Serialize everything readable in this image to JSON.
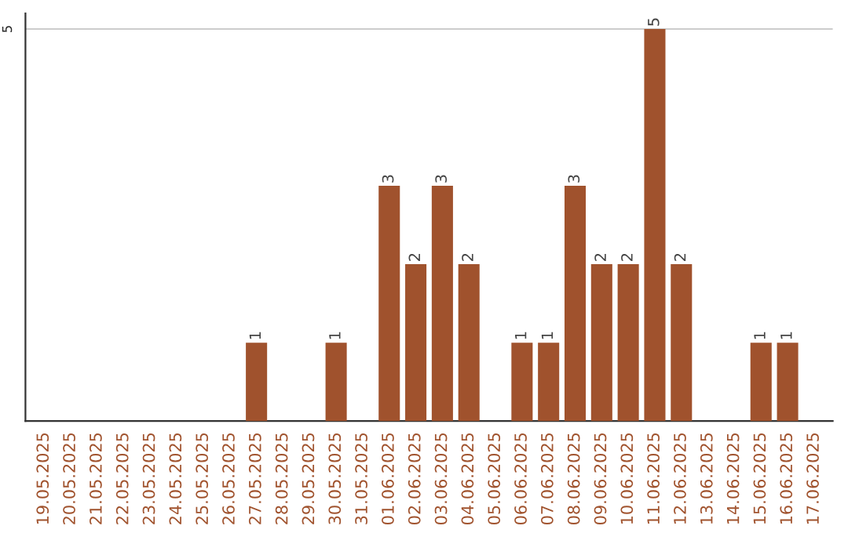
{
  "chart_data": {
    "type": "bar",
    "categories": [
      "19.05.2025",
      "20.05.2025",
      "21.05.2025",
      "22.05.2025",
      "23.05.2025",
      "24.05.2025",
      "25.05.2025",
      "26.05.2025",
      "27.05.2025",
      "28.05.2025",
      "29.05.2025",
      "30.05.2025",
      "31.05.2025",
      "01.06.2025",
      "02.06.2025",
      "03.06.2025",
      "04.06.2025",
      "05.06.2025",
      "06.06.2025",
      "07.06.2025",
      "08.06.2025",
      "09.06.2025",
      "10.06.2025",
      "11.06.2025",
      "12.06.2025",
      "13.06.2025",
      "14.06.2025",
      "15.06.2025",
      "16.06.2025",
      "17.06.2025"
    ],
    "values": [
      0,
      0,
      0,
      0,
      0,
      0,
      0,
      0,
      1,
      0,
      0,
      1,
      0,
      3,
      2,
      3,
      2,
      0,
      1,
      1,
      3,
      2,
      2,
      5,
      2,
      0,
      0,
      1,
      1,
      0
    ],
    "value_labels": [
      null,
      null,
      null,
      null,
      null,
      null,
      null,
      null,
      "1",
      null,
      null,
      "1",
      null,
      "3",
      "2",
      "3",
      "2",
      null,
      "1",
      "1",
      "3",
      "2",
      "2",
      "5",
      "2",
      null,
      null,
      "1",
      "1",
      null
    ],
    "color": "#a0522d",
    "ylim": [
      0,
      5.2
    ],
    "yticks": [
      5
    ],
    "grid": "y",
    "legend": false
  }
}
